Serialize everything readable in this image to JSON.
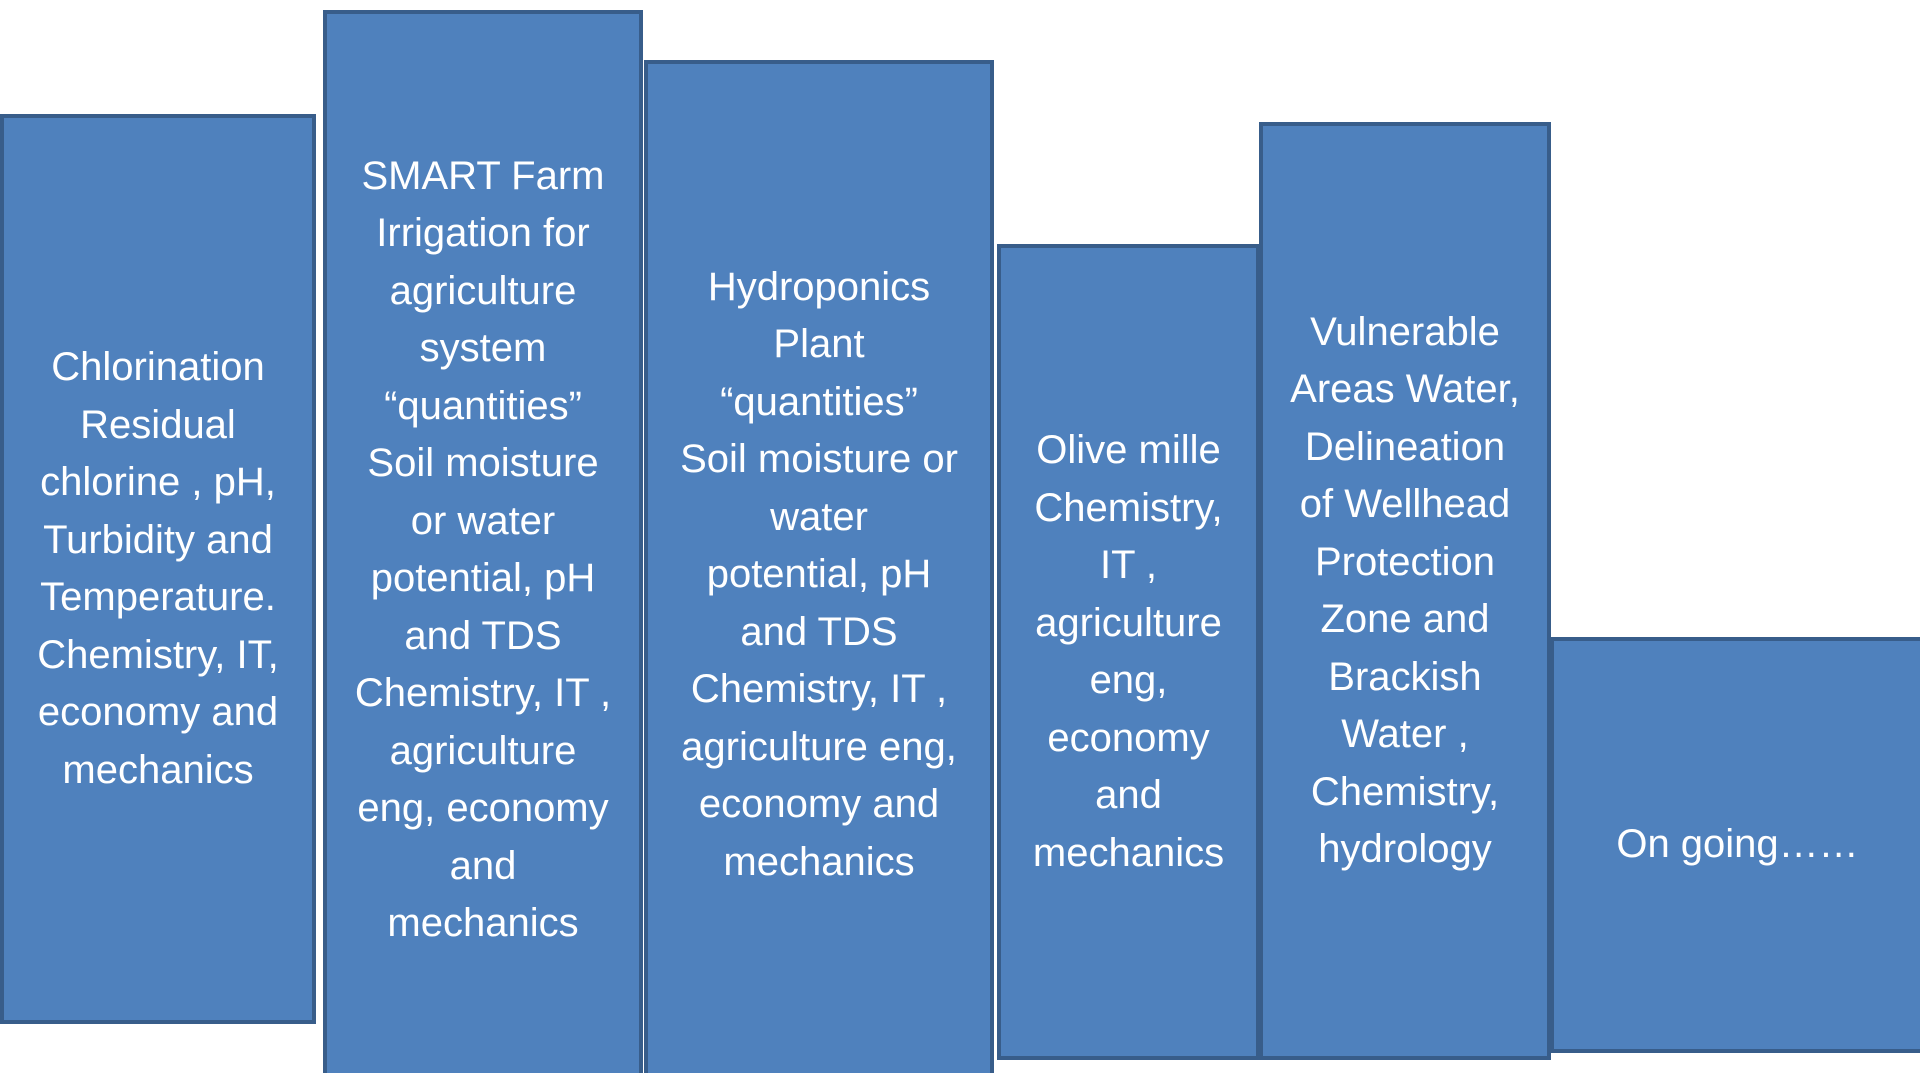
{
  "boxes": [
    {
      "lines": [
        "Chlorination",
        "Residual",
        "chlorine , pH,",
        "Turbidity and",
        "Temperature.",
        "Chemistry, IT,",
        "economy  and",
        "mechanics"
      ]
    },
    {
      "lines": [
        "SMART Farm",
        "Irrigation for",
        "agriculture",
        "system",
        "“quantities”",
        "Soil moisture",
        "or water",
        "potential, pH",
        "and TDS",
        "Chemistry, IT ,",
        "agriculture",
        "eng, economy",
        "and",
        "mechanics"
      ]
    },
    {
      "lines": [
        "Hydroponics",
        "Plant",
        "“quantities”",
        "Soil moisture or",
        "water",
        "potential, pH",
        "and TDS",
        "Chemistry, IT ,",
        "agriculture eng,",
        "economy and",
        "mechanics"
      ]
    },
    {
      "lines": [
        "Olive mille",
        "Chemistry,",
        "IT ,",
        "agriculture",
        "eng,",
        "economy",
        "and",
        "mechanics"
      ]
    },
    {
      "lines": [
        "Vulnerable",
        "Areas Water,",
        "Delineation",
        "of Wellhead",
        "Protection",
        "Zone and",
        "Brackish",
        "Water ,",
        "Chemistry,",
        "hydrology"
      ]
    },
    {
      "lines": [
        "On going……"
      ]
    }
  ]
}
